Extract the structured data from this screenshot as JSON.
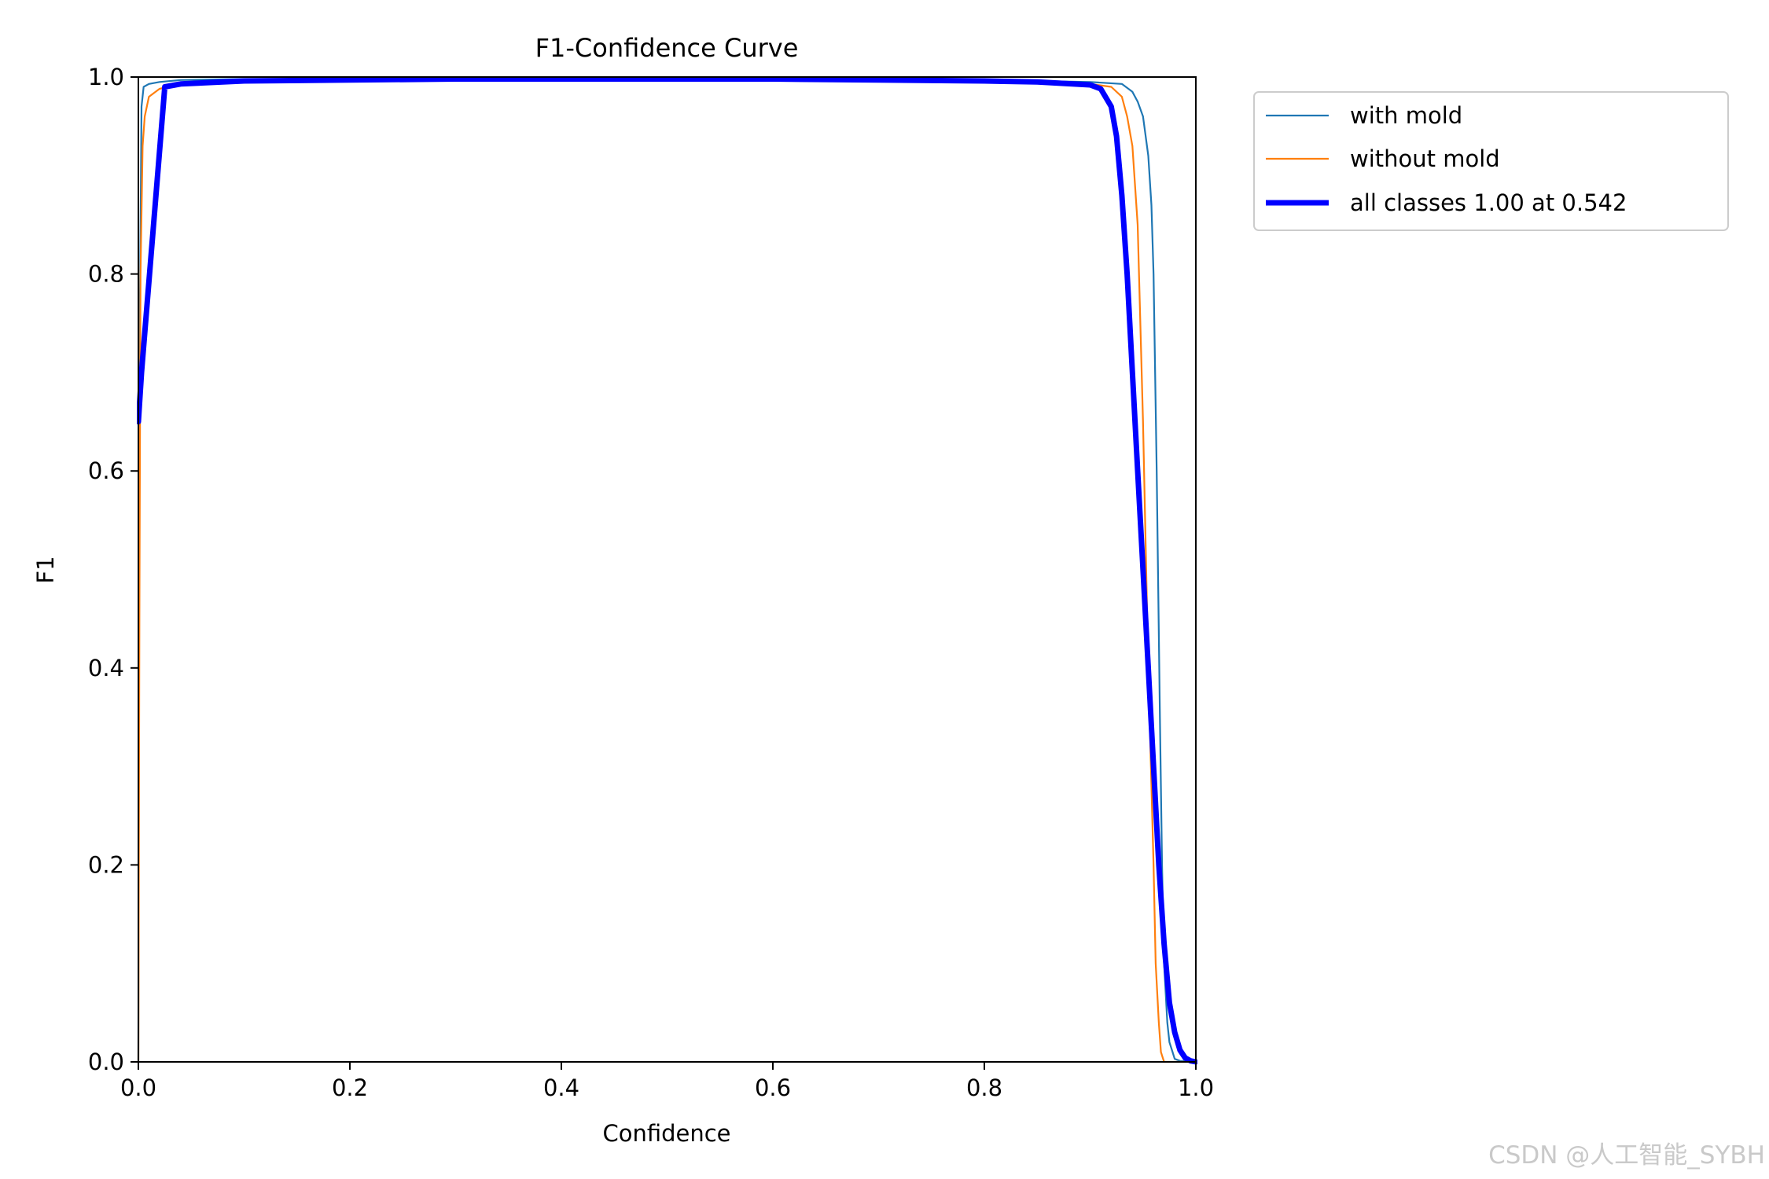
{
  "chart_data": {
    "type": "line",
    "title": "F1-Confidence Curve",
    "xlabel": "Confidence",
    "ylabel": "F1",
    "xlim": [
      0,
      1
    ],
    "ylim": [
      0,
      1
    ],
    "xticks": [
      "0.0",
      "0.2",
      "0.4",
      "0.6",
      "0.8",
      "1.0"
    ],
    "yticks": [
      "0.0",
      "0.2",
      "0.4",
      "0.6",
      "0.8",
      "1.0"
    ],
    "grid": false,
    "legend_position": "outside-top-right",
    "series": [
      {
        "name": "with mold",
        "color": "#1f77b4",
        "style": "thin",
        "x": [
          0,
          0.001,
          0.003,
          0.005,
          0.01,
          0.02,
          0.04,
          0.1,
          0.2,
          0.3,
          0.4,
          0.5,
          0.6,
          0.7,
          0.8,
          0.85,
          0.9,
          0.93,
          0.94,
          0.945,
          0.95,
          0.955,
          0.958,
          0.96,
          0.963,
          0.966,
          0.968,
          0.97,
          0.973,
          0.975,
          0.978,
          0.98,
          0.985,
          1.0
        ],
        "y": [
          0,
          0.7,
          0.97,
          0.99,
          0.993,
          0.995,
          0.997,
          0.998,
          0.998,
          0.998,
          0.998,
          0.998,
          0.998,
          0.997,
          0.996,
          0.996,
          0.995,
          0.993,
          0.985,
          0.975,
          0.96,
          0.92,
          0.87,
          0.8,
          0.6,
          0.35,
          0.2,
          0.1,
          0.04,
          0.02,
          0.01,
          0.003,
          0.001,
          0
        ]
      },
      {
        "name": "without mold",
        "color": "#ff7f0e",
        "style": "thin",
        "x": [
          0,
          0.001,
          0.002,
          0.004,
          0.006,
          0.01,
          0.02,
          0.04,
          0.1,
          0.2,
          0.3,
          0.4,
          0.5,
          0.6,
          0.7,
          0.8,
          0.88,
          0.9,
          0.92,
          0.93,
          0.935,
          0.94,
          0.945,
          0.95,
          0.955,
          0.96,
          0.962,
          0.965,
          0.967,
          0.97,
          0.975,
          1.0
        ],
        "y": [
          0,
          0.45,
          0.8,
          0.93,
          0.96,
          0.98,
          0.988,
          0.993,
          0.996,
          0.997,
          0.997,
          0.997,
          0.997,
          0.997,
          0.996,
          0.995,
          0.994,
          0.993,
          0.99,
          0.98,
          0.96,
          0.93,
          0.85,
          0.65,
          0.4,
          0.2,
          0.1,
          0.04,
          0.01,
          0,
          0,
          0
        ]
      },
      {
        "name": "all classes 1.00 at 0.542",
        "color": "#0000ff",
        "style": "thick",
        "x": [
          0,
          0.003,
          0.025,
          0.04,
          0.1,
          0.2,
          0.3,
          0.4,
          0.5,
          0.542,
          0.6,
          0.7,
          0.8,
          0.85,
          0.9,
          0.91,
          0.92,
          0.925,
          0.93,
          0.935,
          0.94,
          0.945,
          0.95,
          0.955,
          0.96,
          0.965,
          0.97,
          0.975,
          0.98,
          0.985,
          0.99,
          0.995,
          1.0
        ],
        "y": [
          0.65,
          0.7,
          0.99,
          0.993,
          0.996,
          0.997,
          0.998,
          0.998,
          0.998,
          0.998,
          0.998,
          0.997,
          0.996,
          0.995,
          0.992,
          0.988,
          0.97,
          0.94,
          0.88,
          0.8,
          0.7,
          0.6,
          0.5,
          0.4,
          0.3,
          0.2,
          0.12,
          0.06,
          0.03,
          0.012,
          0.004,
          0.001,
          0
        ]
      }
    ]
  },
  "watermark": "CSDN @人工智能_SYBH"
}
